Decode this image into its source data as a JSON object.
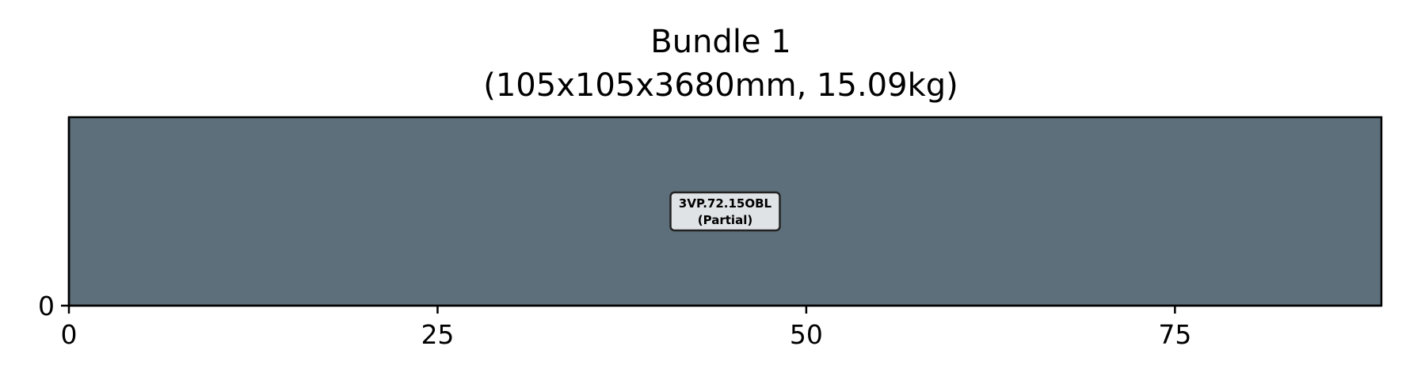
{
  "chart_data": {
    "type": "bar",
    "title": "Bundle 1",
    "subtitle": "(105x105x3680mm, 15.09kg)",
    "xlabel": "",
    "ylabel": "",
    "xlim": [
      0,
      89
    ],
    "ylim": [
      0,
      1
    ],
    "x_ticks": [
      "0",
      "25",
      "50",
      "75"
    ],
    "x_tick_values": [
      0,
      25,
      50,
      75
    ],
    "y_ticks": [
      "0"
    ],
    "y_tick_values": [
      0
    ],
    "grid": false,
    "legend": "none",
    "items": [
      {
        "x_start": 0,
        "x_end": 89,
        "y_start": 0,
        "y_end": 1,
        "label_line1": "3VP.72.15OBL",
        "label_line2": "(Partial)",
        "color": "#5d6f7a"
      }
    ],
    "label_box_color": "#dfe3e6"
  }
}
